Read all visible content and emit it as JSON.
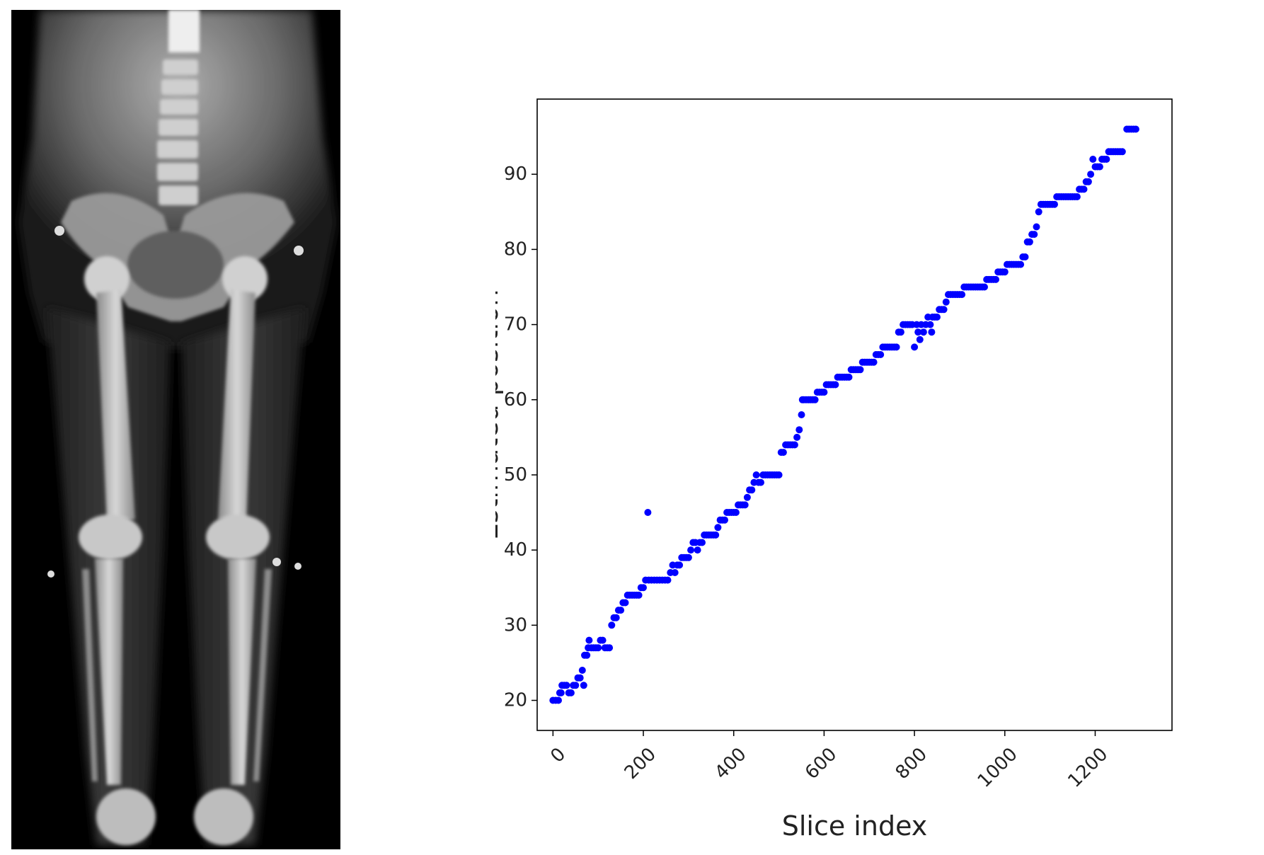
{
  "figure": {
    "left_image": {
      "kind": "x-ray-radiograph",
      "subject": "full-body standing AP x-ray (pelvis to feet)"
    },
    "right_plot": {
      "kind": "scatter"
    }
  },
  "chart_data": {
    "type": "scatter",
    "title": "",
    "xlabel": "Slice index",
    "ylabel": "Estimated position",
    "xlim": [
      -35,
      1370
    ],
    "ylim": [
      16,
      100
    ],
    "xticks": [
      0,
      200,
      400,
      600,
      800,
      1000,
      1200
    ],
    "yticks": [
      20,
      30,
      40,
      50,
      60,
      70,
      80,
      90
    ],
    "grid": false,
    "legend": "none",
    "marker_color": "#0000ff",
    "series": [
      {
        "points": [
          [
            0,
            20
          ],
          [
            6,
            20
          ],
          [
            12,
            20
          ],
          [
            15,
            21
          ],
          [
            18,
            21
          ],
          [
            20,
            22
          ],
          [
            25,
            22
          ],
          [
            30,
            22
          ],
          [
            35,
            21
          ],
          [
            40,
            21
          ],
          [
            45,
            22
          ],
          [
            50,
            22
          ],
          [
            55,
            23
          ],
          [
            60,
            23
          ],
          [
            65,
            24
          ],
          [
            68,
            22
          ],
          [
            70,
            26
          ],
          [
            75,
            26
          ],
          [
            78,
            27
          ],
          [
            80,
            28
          ],
          [
            85,
            27
          ],
          [
            90,
            27
          ],
          [
            95,
            27
          ],
          [
            100,
            27
          ],
          [
            105,
            28
          ],
          [
            110,
            28
          ],
          [
            115,
            27
          ],
          [
            120,
            27
          ],
          [
            125,
            27
          ],
          [
            130,
            30
          ],
          [
            135,
            31
          ],
          [
            140,
            31
          ],
          [
            145,
            32
          ],
          [
            150,
            32
          ],
          [
            155,
            33
          ],
          [
            160,
            33
          ],
          [
            165,
            34
          ],
          [
            170,
            34
          ],
          [
            175,
            34
          ],
          [
            180,
            34
          ],
          [
            185,
            34
          ],
          [
            190,
            34
          ],
          [
            195,
            35
          ],
          [
            200,
            35
          ],
          [
            205,
            36
          ],
          [
            210,
            45
          ],
          [
            212,
            36
          ],
          [
            218,
            36
          ],
          [
            224,
            36
          ],
          [
            230,
            36
          ],
          [
            236,
            36
          ],
          [
            242,
            36
          ],
          [
            248,
            36
          ],
          [
            254,
            36
          ],
          [
            260,
            37
          ],
          [
            265,
            38
          ],
          [
            270,
            37
          ],
          [
            275,
            38
          ],
          [
            280,
            38
          ],
          [
            285,
            39
          ],
          [
            290,
            39
          ],
          [
            295,
            39
          ],
          [
            300,
            39
          ],
          [
            305,
            40
          ],
          [
            310,
            41
          ],
          [
            315,
            41
          ],
          [
            320,
            40
          ],
          [
            325,
            41
          ],
          [
            330,
            41
          ],
          [
            335,
            42
          ],
          [
            340,
            42
          ],
          [
            345,
            42
          ],
          [
            350,
            42
          ],
          [
            355,
            42
          ],
          [
            360,
            42
          ],
          [
            365,
            43
          ],
          [
            370,
            44
          ],
          [
            375,
            44
          ],
          [
            380,
            44
          ],
          [
            385,
            45
          ],
          [
            390,
            45
          ],
          [
            395,
            45
          ],
          [
            400,
            45
          ],
          [
            405,
            45
          ],
          [
            410,
            46
          ],
          [
            415,
            46
          ],
          [
            420,
            46
          ],
          [
            425,
            46
          ],
          [
            430,
            47
          ],
          [
            435,
            48
          ],
          [
            440,
            48
          ],
          [
            445,
            49
          ],
          [
            450,
            50
          ],
          [
            455,
            49
          ],
          [
            460,
            49
          ],
          [
            465,
            50
          ],
          [
            470,
            50
          ],
          [
            475,
            50
          ],
          [
            480,
            50
          ],
          [
            485,
            50
          ],
          [
            490,
            50
          ],
          [
            495,
            50
          ],
          [
            500,
            50
          ],
          [
            505,
            53
          ],
          [
            510,
            53
          ],
          [
            515,
            54
          ],
          [
            520,
            54
          ],
          [
            525,
            54
          ],
          [
            530,
            54
          ],
          [
            535,
            54
          ],
          [
            540,
            55
          ],
          [
            545,
            56
          ],
          [
            550,
            58
          ],
          [
            552,
            60
          ],
          [
            555,
            60
          ],
          [
            560,
            60
          ],
          [
            565,
            60
          ],
          [
            570,
            60
          ],
          [
            575,
            60
          ],
          [
            580,
            60
          ],
          [
            585,
            61
          ],
          [
            590,
            61
          ],
          [
            595,
            61
          ],
          [
            600,
            61
          ],
          [
            605,
            62
          ],
          [
            610,
            62
          ],
          [
            615,
            62
          ],
          [
            620,
            62
          ],
          [
            625,
            62
          ],
          [
            630,
            63
          ],
          [
            635,
            63
          ],
          [
            640,
            63
          ],
          [
            645,
            63
          ],
          [
            650,
            63
          ],
          [
            655,
            63
          ],
          [
            660,
            64
          ],
          [
            665,
            64
          ],
          [
            670,
            64
          ],
          [
            675,
            64
          ],
          [
            680,
            64
          ],
          [
            685,
            65
          ],
          [
            690,
            65
          ],
          [
            695,
            65
          ],
          [
            700,
            65
          ],
          [
            705,
            65
          ],
          [
            710,
            65
          ],
          [
            715,
            66
          ],
          [
            720,
            66
          ],
          [
            725,
            66
          ],
          [
            730,
            67
          ],
          [
            735,
            67
          ],
          [
            740,
            67
          ],
          [
            745,
            67
          ],
          [
            750,
            67
          ],
          [
            755,
            67
          ],
          [
            760,
            67
          ],
          [
            765,
            69
          ],
          [
            770,
            69
          ],
          [
            775,
            70
          ],
          [
            780,
            70
          ],
          [
            785,
            70
          ],
          [
            790,
            70
          ],
          [
            795,
            70
          ],
          [
            800,
            67
          ],
          [
            805,
            70
          ],
          [
            808,
            69
          ],
          [
            812,
            68
          ],
          [
            815,
            70
          ],
          [
            820,
            69
          ],
          [
            825,
            70
          ],
          [
            830,
            71
          ],
          [
            835,
            70
          ],
          [
            838,
            69
          ],
          [
            840,
            71
          ],
          [
            845,
            71
          ],
          [
            850,
            71
          ],
          [
            855,
            72
          ],
          [
            860,
            72
          ],
          [
            865,
            72
          ],
          [
            870,
            73
          ],
          [
            875,
            74
          ],
          [
            880,
            74
          ],
          [
            885,
            74
          ],
          [
            890,
            74
          ],
          [
            895,
            74
          ],
          [
            900,
            74
          ],
          [
            905,
            74
          ],
          [
            910,
            75
          ],
          [
            915,
            75
          ],
          [
            920,
            75
          ],
          [
            925,
            75
          ],
          [
            930,
            75
          ],
          [
            935,
            75
          ],
          [
            940,
            75
          ],
          [
            945,
            75
          ],
          [
            950,
            75
          ],
          [
            955,
            75
          ],
          [
            960,
            76
          ],
          [
            965,
            76
          ],
          [
            970,
            76
          ],
          [
            975,
            76
          ],
          [
            980,
            76
          ],
          [
            985,
            77
          ],
          [
            990,
            77
          ],
          [
            995,
            77
          ],
          [
            1000,
            77
          ],
          [
            1005,
            78
          ],
          [
            1010,
            78
          ],
          [
            1015,
            78
          ],
          [
            1020,
            78
          ],
          [
            1025,
            78
          ],
          [
            1030,
            78
          ],
          [
            1035,
            78
          ],
          [
            1040,
            79
          ],
          [
            1045,
            79
          ],
          [
            1050,
            81
          ],
          [
            1055,
            81
          ],
          [
            1060,
            82
          ],
          [
            1065,
            82
          ],
          [
            1070,
            83
          ],
          [
            1075,
            85
          ],
          [
            1080,
            86
          ],
          [
            1085,
            86
          ],
          [
            1090,
            86
          ],
          [
            1095,
            86
          ],
          [
            1100,
            86
          ],
          [
            1105,
            86
          ],
          [
            1110,
            86
          ],
          [
            1115,
            87
          ],
          [
            1120,
            87
          ],
          [
            1125,
            87
          ],
          [
            1130,
            87
          ],
          [
            1135,
            87
          ],
          [
            1140,
            87
          ],
          [
            1145,
            87
          ],
          [
            1150,
            87
          ],
          [
            1155,
            87
          ],
          [
            1160,
            87
          ],
          [
            1165,
            88
          ],
          [
            1170,
            88
          ],
          [
            1175,
            88
          ],
          [
            1180,
            89
          ],
          [
            1185,
            89
          ],
          [
            1190,
            90
          ],
          [
            1195,
            92
          ],
          [
            1200,
            91
          ],
          [
            1205,
            91
          ],
          [
            1210,
            91
          ],
          [
            1215,
            92
          ],
          [
            1220,
            92
          ],
          [
            1225,
            92
          ],
          [
            1230,
            93
          ],
          [
            1235,
            93
          ],
          [
            1240,
            93
          ],
          [
            1245,
            93
          ],
          [
            1250,
            93
          ],
          [
            1255,
            93
          ],
          [
            1260,
            93
          ],
          [
            1270,
            96
          ],
          [
            1275,
            96
          ],
          [
            1280,
            96
          ],
          [
            1285,
            96
          ],
          [
            1290,
            96
          ]
        ]
      }
    ]
  }
}
